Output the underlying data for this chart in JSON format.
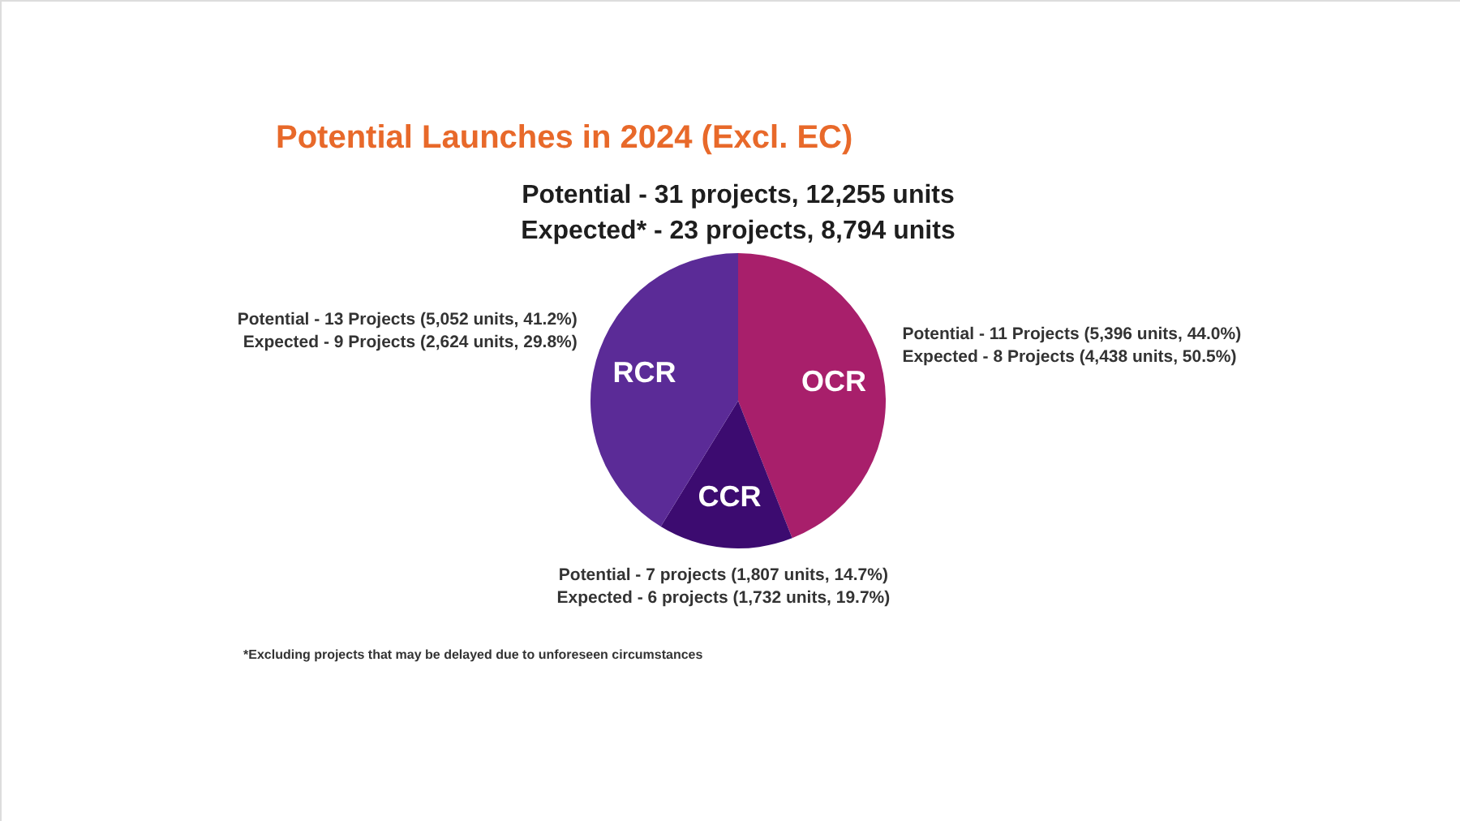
{
  "chart_data": {
    "type": "pie",
    "title": "Potential Launches in 2024 (Excl. EC)",
    "subtitle": "Potential - 31 projects, 12,255 units\nExpected* - 23 projects, 8,794 units",
    "categories": [
      "OCR",
      "CCR",
      "RCR"
    ],
    "values": [
      5396,
      1807,
      5052
    ],
    "colors": [
      "#a81f6b",
      "#3c0b70",
      "#5b2b97"
    ],
    "value_labels": [
      "Potential - 11 Projects (5,396 units, 44.0%)\nExpected - 8 Projects (4,438 units, 50.5%)",
      "Potential - 7 projects (1,807 units, 14.7%)\nExpected - 6 projects (1,732 units, 19.7%)",
      "Potential - 13 Projects (5,052 units, 41.2%)\nExpected - 9 Projects (2,624 units, 29.8%)"
    ],
    "annotations": [
      "*Excluding projects that may be delayed due to unforeseen circumstances"
    ]
  }
}
